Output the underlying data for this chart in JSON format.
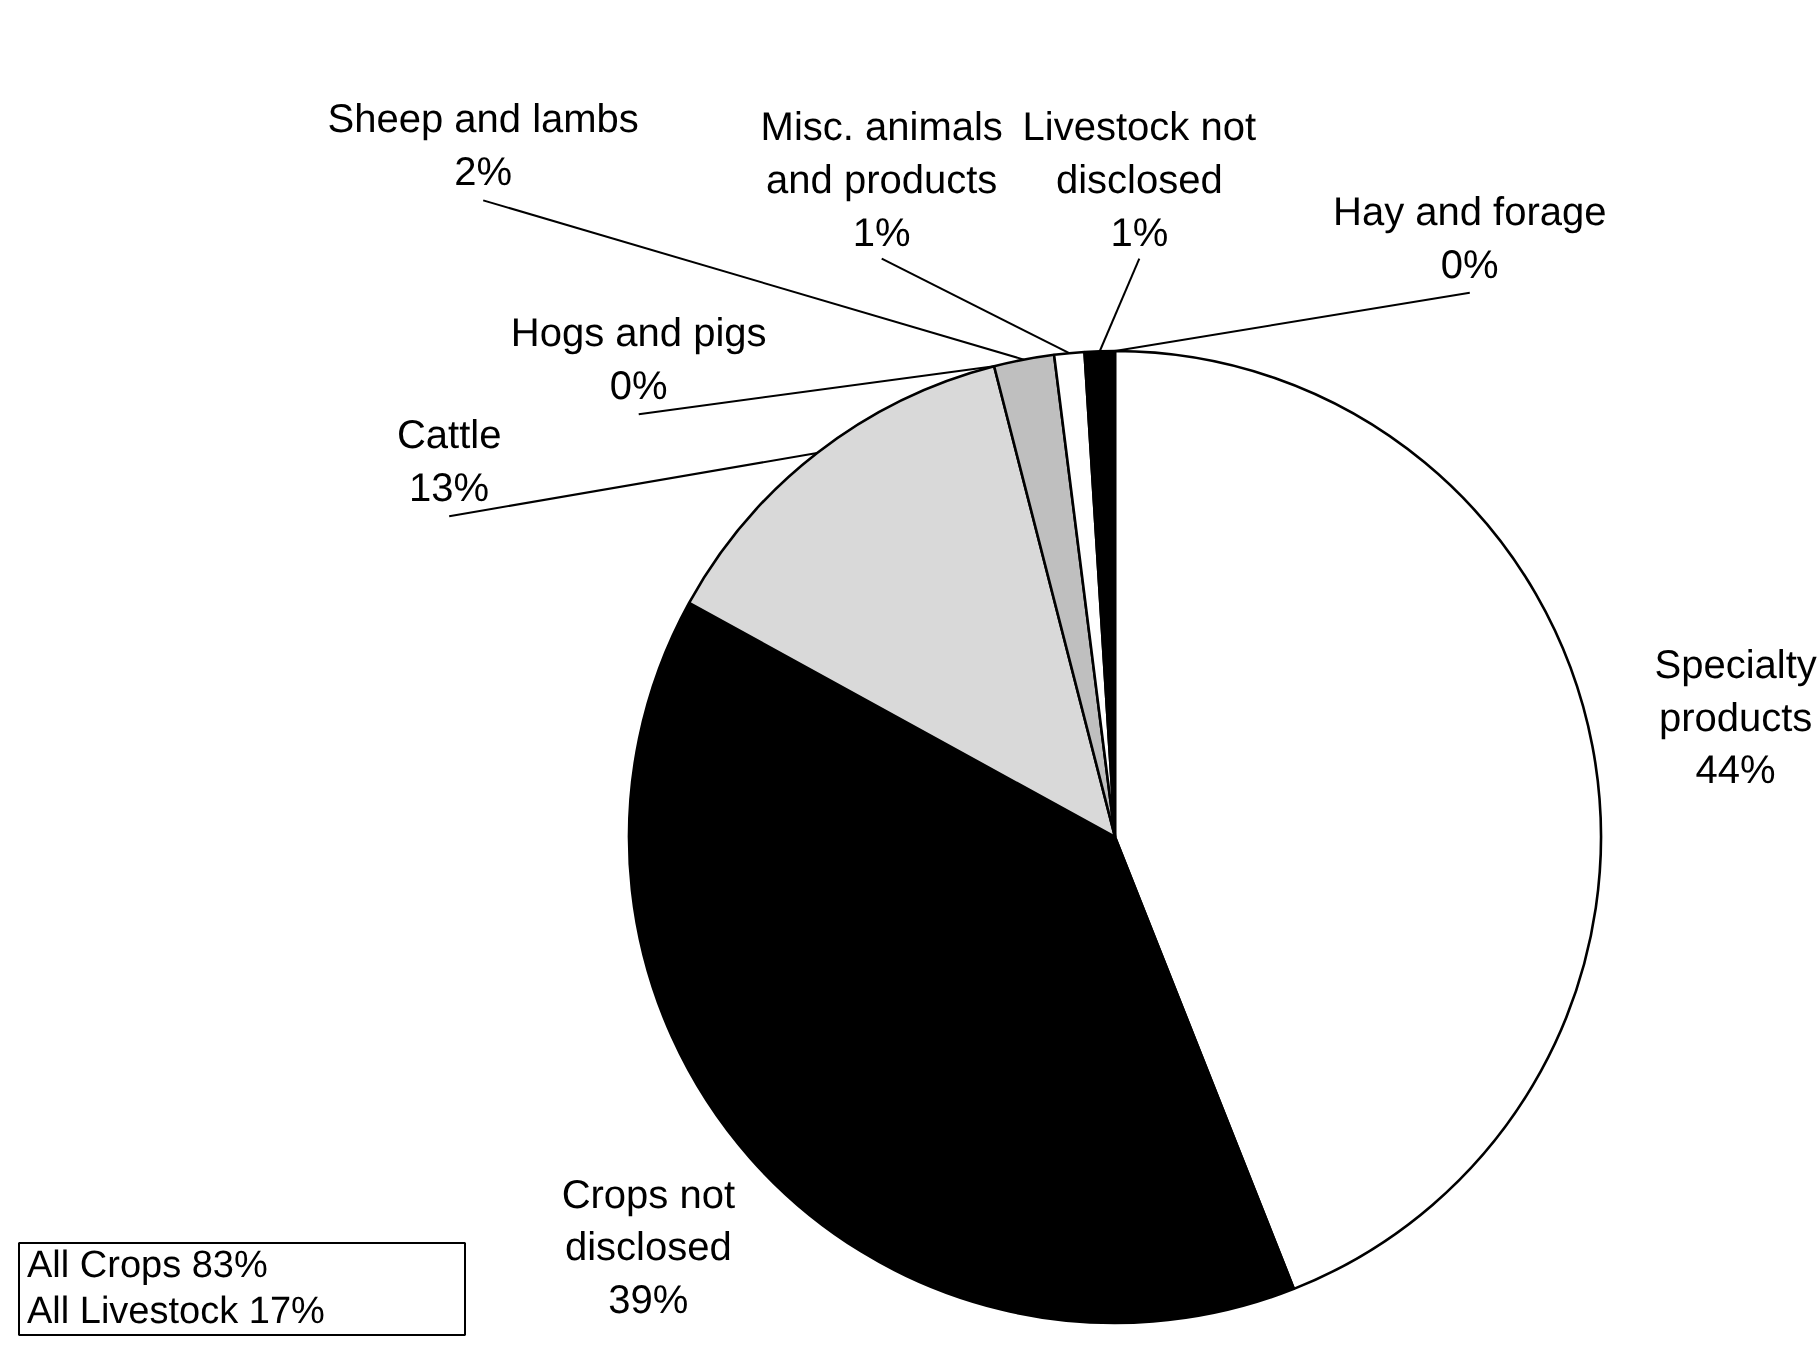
{
  "chart_data": {
    "type": "pie",
    "categories": [
      "Hay and forage",
      "Specialty products",
      "Crops not disclosed",
      "Cattle",
      "Hogs and pigs",
      "Sheep and lambs",
      "Misc. animals and products",
      "Livestock not disclosed"
    ],
    "values": [
      0,
      44,
      39,
      13,
      0,
      2,
      1,
      1
    ],
    "value_labels": [
      "0%",
      "44%",
      "39%",
      "13%",
      "0%",
      "2%",
      "1%",
      "1%"
    ],
    "colors": [
      "#ffffff",
      "#ffffff",
      "#000000",
      "#d9d9d9",
      "#ffffff",
      "#bfbfbf",
      "#ffffff",
      "#000000"
    ],
    "annotations": [
      "All Crops  83%",
      "All Livestock  17%"
    ]
  }
}
